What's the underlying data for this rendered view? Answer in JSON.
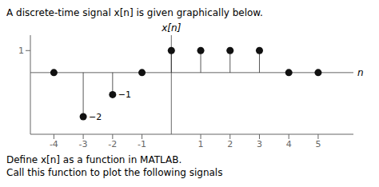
{
  "chart_data": {
    "type": "stem",
    "title": "A discrete-time signal x[n] is given graphically below.",
    "captions": [
      "Define x[n] as a function in MATLAB.",
      "Call this function to plot the following signals"
    ],
    "x_label": "n",
    "y_label": "x[n]",
    "x": [
      -4,
      -3,
      -2,
      -1,
      0,
      1,
      2,
      3,
      4,
      5
    ],
    "values": [
      0,
      -2,
      -1,
      0,
      1,
      1,
      1,
      1,
      0,
      0
    ],
    "xlim": [
      -4.8,
      6.2
    ],
    "ylim": [
      -2.8,
      1.7
    ],
    "xticks": [
      -4,
      -3,
      -2,
      -1,
      1,
      2,
      3,
      4,
      5
    ],
    "yticks": [
      1
    ],
    "annotations": [
      {
        "x": -2,
        "y": -1,
        "text": "−1"
      },
      {
        "x": -3,
        "y": -2,
        "text": "−2"
      }
    ],
    "color": "#111111",
    "grid": false
  }
}
